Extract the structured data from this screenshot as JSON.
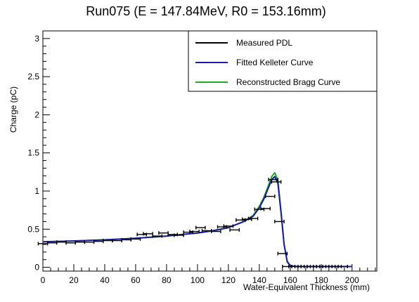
{
  "chart_data": {
    "type": "line",
    "title": "Run075 (E = 147.84MeV, R0 = 153.16mm)",
    "xlabel": "Water-Equivalent Thickness (mm)",
    "ylabel": "Charge (pC)",
    "xlim": [
      0,
      216
    ],
    "ylim": [
      -0.05,
      3.1
    ],
    "xticks": [
      "0",
      "20",
      "40",
      "60",
      "80",
      "100",
      "120",
      "140",
      "160",
      "180",
      "200"
    ],
    "yticks": [
      "0",
      "0.5",
      "1",
      "1.5",
      "2",
      "2.5",
      "3"
    ],
    "legend_position": "top-right",
    "series": [
      {
        "name": "Measured PDL",
        "style": "points-with-x-error",
        "color": "#000000",
        "x_error": 3,
        "x": [
          0,
          6,
          12,
          18,
          24,
          30,
          36,
          42,
          48,
          54,
          60,
          64,
          68,
          74,
          78,
          84,
          88,
          94,
          98,
          102,
          106,
          112,
          116,
          120,
          124,
          128,
          132,
          136,
          140,
          144,
          147,
          149,
          151,
          153,
          155,
          158,
          162,
          166,
          170,
          174,
          178,
          182,
          186,
          190,
          194
        ],
        "y": [
          0.31,
          0.32,
          0.33,
          0.32,
          0.33,
          0.33,
          0.34,
          0.35,
          0.35,
          0.36,
          0.37,
          0.43,
          0.44,
          0.41,
          0.45,
          0.43,
          0.42,
          0.46,
          0.47,
          0.52,
          0.48,
          0.47,
          0.53,
          0.54,
          0.49,
          0.62,
          0.63,
          0.64,
          0.76,
          0.77,
          0.93,
          1.15,
          1.12,
          0.6,
          0.18,
          0.01,
          0.01,
          0.01,
          0.01,
          0.01,
          0.01,
          0.01,
          0.01,
          0.01,
          0.01
        ]
      },
      {
        "name": "Fitted Kelleter Curve",
        "style": "line",
        "color": "#1a1aa6",
        "x": [
          0,
          20,
          40,
          60,
          80,
          100,
          110,
          120,
          130,
          136,
          140,
          143,
          146,
          148,
          150,
          152,
          154,
          156,
          158,
          160,
          164,
          200
        ],
        "y": [
          0.335,
          0.345,
          0.36,
          0.38,
          0.41,
          0.45,
          0.48,
          0.52,
          0.6,
          0.67,
          0.78,
          0.9,
          1.05,
          1.15,
          1.19,
          1.1,
          0.72,
          0.3,
          0.08,
          0.02,
          0.01,
          0.01
        ]
      },
      {
        "name": "Reconstructed Bragg Curve",
        "style": "line",
        "color": "#22aa22",
        "x": [
          0,
          20,
          40,
          60,
          80,
          100,
          110,
          120,
          130,
          136,
          140,
          143,
          146,
          148,
          150,
          152,
          154,
          156,
          158,
          160,
          164,
          200
        ],
        "y": [
          0.335,
          0.345,
          0.36,
          0.38,
          0.41,
          0.45,
          0.48,
          0.52,
          0.6,
          0.68,
          0.8,
          0.92,
          1.08,
          1.19,
          1.24,
          1.14,
          0.74,
          0.3,
          0.07,
          0.02,
          0.01,
          0.01
        ]
      }
    ]
  }
}
